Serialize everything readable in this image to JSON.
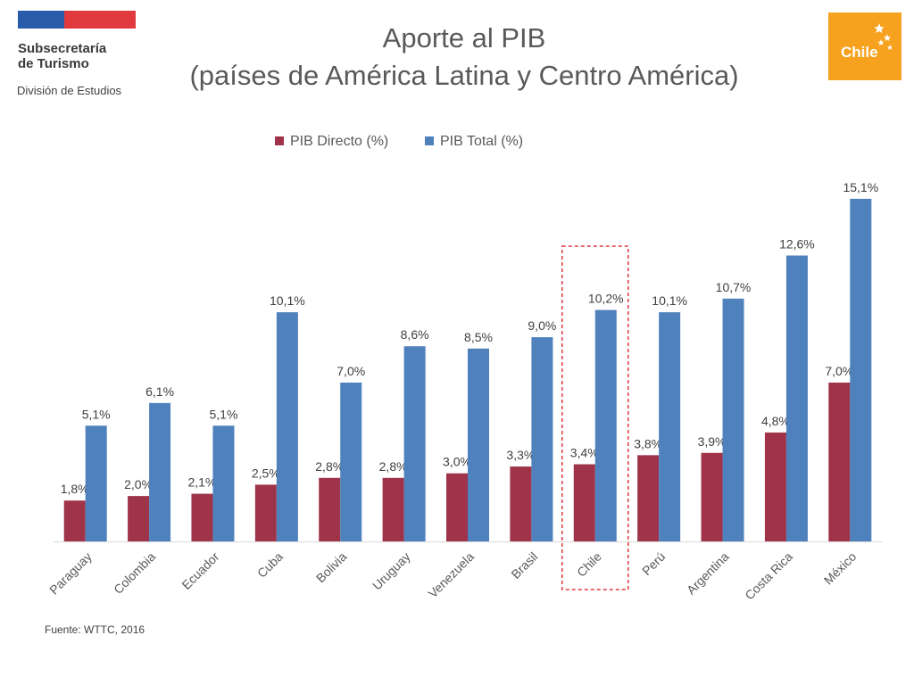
{
  "header": {
    "org_line1": "Subsecretaría",
    "org_line2": "de Turismo",
    "division": "División de Estudios",
    "title_line1": "Aporte al PIB",
    "title_line2": "(países de América Latina y Centro América)",
    "logo_text": "Chile"
  },
  "footer": {
    "source": "Fuente: WTTC, 2016"
  },
  "colors": {
    "flag_blue": "#2a5ba8",
    "flag_red": "#e03a3e",
    "logo_orange": "#f6a21e",
    "highlight_border": "#e03a3e"
  },
  "chart_data": {
    "type": "bar",
    "categories": [
      "Paraguay",
      "Colombia",
      "Ecuador",
      "Cuba",
      "Bolivia",
      "Uruguay",
      "Venezuela",
      "Brasil",
      "Chile",
      "Perú",
      "Argentina",
      "Costa Rica",
      "México"
    ],
    "series": [
      {
        "name": "PIB Directo (%)",
        "color": "#9e3349",
        "values": [
          1.8,
          2.0,
          2.1,
          2.5,
          2.8,
          2.8,
          3.0,
          3.3,
          3.4,
          3.8,
          3.9,
          4.8,
          7.0
        ],
        "labels": [
          "1,8%",
          "2,0%",
          "2,1%",
          "2,5%",
          "2,8%",
          "2,8%",
          "3,0%",
          "3,3%",
          "3,4%",
          "3,8%",
          "3,9%",
          "4,8%",
          "7,0%"
        ]
      },
      {
        "name": "PIB Total (%)",
        "color": "#4f81bd",
        "values": [
          5.1,
          6.1,
          5.1,
          10.1,
          7.0,
          8.6,
          8.5,
          9.0,
          10.2,
          10.1,
          10.7,
          12.6,
          15.1
        ],
        "labels": [
          "5,1%",
          "6,1%",
          "5,1%",
          "10,1%",
          "7,0%",
          "8,6%",
          "8,5%",
          "9,0%",
          "10,2%",
          "10,1%",
          "10,7%",
          "12,6%",
          "15,1%"
        ]
      }
    ],
    "ylim": [
      0,
      16
    ],
    "grid": false,
    "legend_position": "top-center",
    "highlighted_category": "Chile"
  }
}
